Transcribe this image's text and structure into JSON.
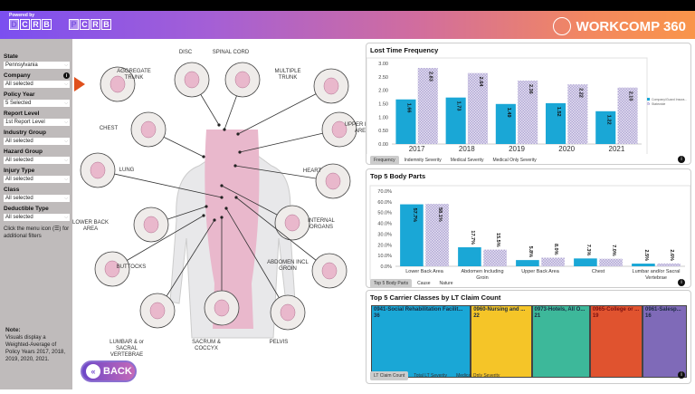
{
  "header": {
    "powered_by": "Powered by",
    "logo1": [
      "D",
      "C",
      "R",
      "B"
    ],
    "logo2": [
      "P",
      "C",
      "R",
      "B"
    ],
    "brand": "WORKCOMP 360",
    "brand_icon": "chart-circle-icon"
  },
  "sidebar": {
    "filters": [
      {
        "label": "State",
        "value": "Pennsylvania"
      },
      {
        "label": "Company",
        "value": "All selected",
        "info": true
      },
      {
        "label": "Policy Year",
        "value": "5 Selected"
      },
      {
        "label": "Report Level",
        "value": "1st Report Level"
      },
      {
        "label": "Industry Group",
        "value": "All selected"
      },
      {
        "label": "Hazard Group",
        "value": "All selected"
      },
      {
        "label": "Injury Type",
        "value": "All selected"
      },
      {
        "label": "Class",
        "value": "All selected"
      },
      {
        "label": "Deductible Type",
        "value": "All selected"
      }
    ],
    "hint": "Click the menu icon (☰) for additional filters",
    "note_title": "Note:",
    "note_text": "Visuals display a Weighted-Average of Policy Years 2017, 2018, 2019, 2020, 2021."
  },
  "diagram": {
    "parts": [
      {
        "key": "aggregate",
        "label": "AGGREGATE\nTRUNK",
        "selected": true
      },
      {
        "key": "disc",
        "label": "DISC"
      },
      {
        "key": "spinal",
        "label": "SPINAL CORD"
      },
      {
        "key": "multiple",
        "label": "MULTIPLE\nTRUNK"
      },
      {
        "key": "chest",
        "label": "CHEST"
      },
      {
        "key": "upperback",
        "label": "UPPER BACK\nAREA"
      },
      {
        "key": "lung",
        "label": "LUNG"
      },
      {
        "key": "heart",
        "label": "HEART"
      },
      {
        "key": "lowerback",
        "label": "LOWER BACK\nAREA"
      },
      {
        "key": "internal",
        "label": "INTERNAL\nORGANS"
      },
      {
        "key": "buttocks",
        "label": "BUTTOCKS"
      },
      {
        "key": "abdomen",
        "label": "ABDOMEN INCL\nGROIN"
      },
      {
        "key": "lumbar",
        "label": "LUMBAR & or\nSACRAL VERTEBRAE"
      },
      {
        "key": "sacrum",
        "label": "SACRUM &\nCOCCYX"
      },
      {
        "key": "pelvis",
        "label": "PELVIS"
      }
    ],
    "back_label": "BACK",
    "colors": {
      "highlight": "#e9b8cc",
      "selected_arrow": "#e0501c"
    }
  },
  "chart_data": [
    {
      "type": "bar",
      "title": "Lost Time Frequency",
      "categories": [
        "2017",
        "2018",
        "2019",
        "2020",
        "2021"
      ],
      "series": [
        {
          "name": "Company/Guard Insura...",
          "values": [
            1.66,
            1.73,
            1.49,
            1.52,
            1.22
          ],
          "color": "#1aa7d6"
        },
        {
          "name": "Statewide",
          "values": [
            2.83,
            2.64,
            2.36,
            2.22,
            2.1
          ],
          "color": "#c8c0e0",
          "pattern": "hatched"
        }
      ],
      "ylim": [
        0,
        3
      ],
      "yticks": [
        "0.00",
        "0.50",
        "1.00",
        "1.50",
        "2.00",
        "2.50",
        "3.00"
      ],
      "legend": "right",
      "tabs": [
        "Frequency",
        "Indemnity Severity",
        "Medical Severity",
        "Medical Only Severity"
      ],
      "active_tab": 0
    },
    {
      "type": "bar",
      "title": "Top 5 Body Parts",
      "categories": [
        "Lower Back Area",
        "Abdomen Including\nGroin",
        "Upper Back Area",
        "Chest",
        "Lumbar and/or Sacral\nVertebrae"
      ],
      "series": [
        {
          "values": [
            57.7,
            17.7,
            5.8,
            7.3,
            2.5
          ],
          "color": "#1aa7d6"
        },
        {
          "values": [
            58.1,
            15.5,
            8.0,
            7.0,
            2.6
          ],
          "color": "#c8c0e0",
          "pattern": "hatched"
        }
      ],
      "ylim": [
        0,
        70
      ],
      "yticks": [
        "0.0%",
        "10.0%",
        "20.0%",
        "30.0%",
        "40.0%",
        "50.0%",
        "60.0%",
        "70.0%"
      ],
      "tabs": [
        "Top 5 Body Parts",
        "Cause",
        "Nature"
      ],
      "active_tab": 0
    },
    {
      "type": "treemap",
      "title": "Top 5 Carrier Classes by LT Claim Count",
      "items": [
        {
          "label": "0941-Social Rehabilitation Facilit...",
          "value": 36,
          "color": "#1aa7d6"
        },
        {
          "label": "0960-Nursing and ...",
          "value": 22,
          "color": "#f5c528"
        },
        {
          "label": "0973-Hotels, All O...",
          "value": 21,
          "color": "#3db89a"
        },
        {
          "label": "0965-College or ...",
          "value": 19,
          "color": "#e0532f"
        },
        {
          "label": "0961-Salesp...",
          "value": 16,
          "color": "#7f6ab8"
        }
      ],
      "tabs": [
        "LT Claim Count",
        "Total LT Severity",
        "Medical Only Severity"
      ],
      "active_tab": 0
    }
  ]
}
